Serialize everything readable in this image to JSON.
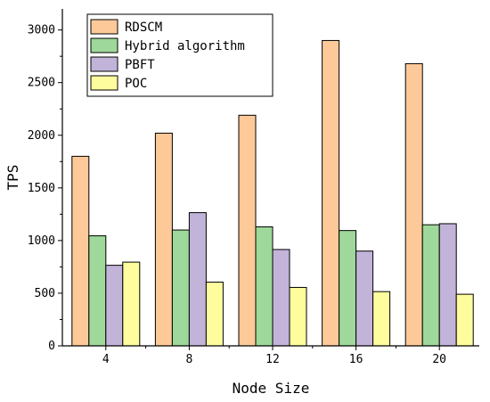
{
  "chart_data": {
    "type": "bar",
    "title": "",
    "xlabel": "Node Size",
    "ylabel": "TPS",
    "categories": [
      "4",
      "8",
      "12",
      "16",
      "20"
    ],
    "ylim": [
      0,
      3200
    ],
    "yticks": [
      0,
      500,
      1000,
      1500,
      2000,
      2500,
      3000
    ],
    "grid": false,
    "legend_position": "top-left",
    "series": [
      {
        "name": "RDSCM",
        "color": "#fdc998",
        "values": [
          1800,
          2020,
          2190,
          2900,
          2680
        ]
      },
      {
        "name": "Hybrid algorithm",
        "color": "#9ed89a",
        "values": [
          1045,
          1100,
          1130,
          1095,
          1150
        ]
      },
      {
        "name": "PBFT",
        "color": "#c2b3d9",
        "values": [
          765,
          1265,
          915,
          900,
          1160
        ]
      },
      {
        "name": "POC",
        "color": "#fdfd9e",
        "values": [
          795,
          605,
          555,
          515,
          490
        ]
      }
    ]
  }
}
